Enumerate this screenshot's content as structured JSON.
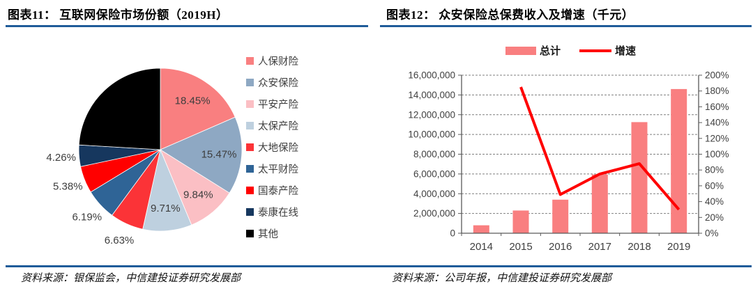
{
  "figure11": {
    "title": "图表11： 互联网保险市场份额（2019H）",
    "source": "资料来源：银保监会，中信建投证券研究发展部"
  },
  "figure12": {
    "title": "图表12： 众安保险总保费收入及增速（千元）",
    "source": "资料来源：公司年报，中信建投证券研究发展部"
  },
  "chart_data": [
    {
      "type": "pie",
      "title": "互联网保险市场份额（2019H）",
      "labels": [
        "人保财险",
        "众安保险",
        "平安产险",
        "太保产险",
        "大地保险",
        "太平财险",
        "国泰产险",
        "泰康在线",
        "其他"
      ],
      "values": [
        18.45,
        15.47,
        9.84,
        9.71,
        6.63,
        6.19,
        5.38,
        4.26,
        24.07
      ],
      "value_labels": [
        "18.45%",
        "15.47%",
        "9.84%",
        "9.71%",
        "6.63%",
        "6.19%",
        "5.38%",
        "4.26%",
        ""
      ],
      "colors": [
        "#F97F80",
        "#8EA8C3",
        "#FBBFC4",
        "#BED0DF",
        "#FB3337",
        "#2F6496",
        "#FF0000",
        "#16375E",
        "#000000"
      ],
      "legend_position": "right",
      "start_angle_deg": 0,
      "direction": "clockwise"
    },
    {
      "type": "bar+line",
      "title": "众安保险总保费收入及增速（千元）",
      "unit": "千元",
      "categories": [
        "2014",
        "2015",
        "2016",
        "2017",
        "2018",
        "2019"
      ],
      "series": [
        {
          "name": "总计",
          "type": "bar",
          "axis": "left",
          "color": "#F97F80",
          "values": [
            800000,
            2300000,
            3400000,
            5950000,
            11250000,
            14600000
          ]
        },
        {
          "name": "增速",
          "type": "line",
          "axis": "right",
          "color": "#FF0000",
          "values": [
            null,
            185,
            49,
            75,
            88,
            30
          ]
        }
      ],
      "left_axis": {
        "min": 0,
        "max": 16000000,
        "step": 2000000,
        "tick_labels": [
          "0",
          "2,000,000",
          "4,000,000",
          "6,000,000",
          "8,000,000",
          "10,000,000",
          "12,000,000",
          "14,000,000",
          "16,000,000"
        ]
      },
      "right_axis": {
        "min": 0,
        "max": 200,
        "step": 20,
        "tick_labels": [
          "0%",
          "20%",
          "40%",
          "60%",
          "80%",
          "100%",
          "120%",
          "140%",
          "160%",
          "180%",
          "200%"
        ]
      },
      "grid": "horizontal dashed",
      "legend_position": "top"
    }
  ]
}
